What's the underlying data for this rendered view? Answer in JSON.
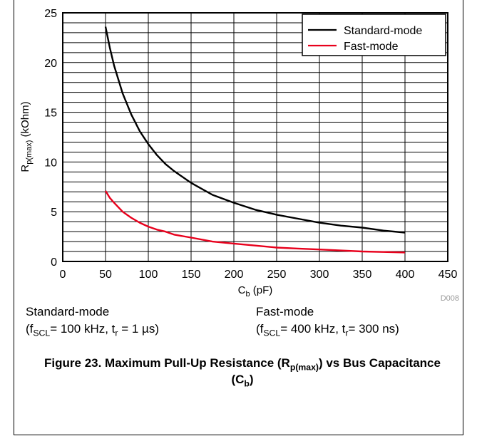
{
  "chart_data": {
    "type": "line",
    "xlabel": {
      "main": "C",
      "sub": "b",
      "rest": " (pF)"
    },
    "ylabel": {
      "main": "R",
      "sub": "p(max)",
      "rest": " (kOhm)"
    },
    "xlim": [
      0,
      450
    ],
    "ylim": [
      0,
      25
    ],
    "xticks": [
      0,
      50,
      100,
      150,
      200,
      250,
      300,
      350,
      400,
      450
    ],
    "yticks": [
      0,
      5,
      10,
      15,
      20,
      25
    ],
    "grid": true,
    "legend_position": "top-right",
    "source_id": "D008",
    "series": [
      {
        "name": "Standard-mode",
        "color": "#000000",
        "x": [
          50,
          55,
          60,
          70,
          80,
          90,
          100,
          110,
          120,
          130,
          150,
          175,
          200,
          225,
          250,
          275,
          300,
          325,
          350,
          375,
          400
        ],
        "y": [
          23.6,
          21.5,
          19.7,
          16.9,
          14.8,
          13.1,
          11.8,
          10.7,
          9.8,
          9.1,
          7.9,
          6.7,
          5.9,
          5.2,
          4.7,
          4.3,
          3.9,
          3.6,
          3.4,
          3.1,
          2.9
        ]
      },
      {
        "name": "Fast-mode",
        "color": "#e8001c",
        "x": [
          50,
          55,
          60,
          70,
          80,
          90,
          100,
          110,
          120,
          130,
          150,
          175,
          200,
          225,
          250,
          275,
          300,
          325,
          350,
          375,
          400
        ],
        "y": [
          7.1,
          6.4,
          5.9,
          5.0,
          4.4,
          3.9,
          3.5,
          3.2,
          3.0,
          2.7,
          2.4,
          2.0,
          1.8,
          1.6,
          1.4,
          1.3,
          1.2,
          1.1,
          1.0,
          0.95,
          0.9
        ]
      }
    ]
  },
  "conditions": {
    "standard": {
      "title": "Standard-mode",
      "open": "(f",
      "sub1": "SCL",
      "mid": "= 100 kHz, t",
      "sub2": "r",
      "close": " = 1 µs)"
    },
    "fast": {
      "title": "Fast-mode",
      "open": "(f",
      "sub1": "SCL",
      "mid": "= 400 kHz, t",
      "sub2": "r",
      "close": "= 300 ns)"
    }
  },
  "caption": {
    "part1": "Figure 23. Maximum Pull-Up Resistance (R",
    "sub1": "p(max)",
    "part2": ") vs Bus Capacitance (C",
    "sub2": "b",
    "part3": ")"
  }
}
